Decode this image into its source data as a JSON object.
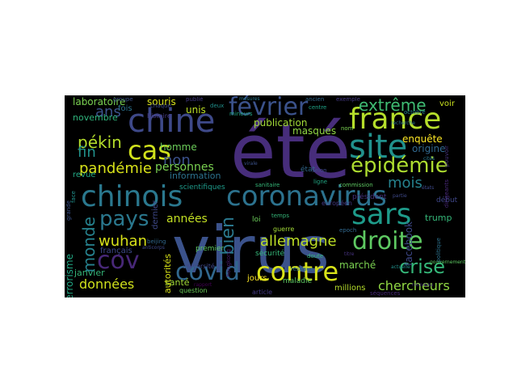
{
  "image": {
    "background": "#ffffff",
    "cloud_background": "#000000",
    "colormap": "viridis"
  },
  "words": [
    {
      "text": "été",
      "color": "#472d7b"
    },
    {
      "text": "virus",
      "color": "#3b528b"
    },
    {
      "text": "chinois",
      "color": "#2a788e"
    },
    {
      "text": "coronavirus",
      "color": "#2c728e"
    },
    {
      "text": "chine",
      "color": "#3e4989"
    },
    {
      "text": "france",
      "color": "#b5de2b"
    },
    {
      "text": "contre",
      "color": "#d8e219"
    },
    {
      "text": "site",
      "color": "#21918c"
    },
    {
      "text": "cas",
      "color": "#d0e11c"
    },
    {
      "text": "sars",
      "color": "#1e9b8a"
    },
    {
      "text": "cov",
      "color": "#482878"
    },
    {
      "text": "covid",
      "color": "#31688e"
    },
    {
      "text": "février",
      "color": "#3b528b"
    },
    {
      "text": "droite",
      "color": "#5ec962"
    },
    {
      "text": "épidémie",
      "color": "#addc30"
    },
    {
      "text": "pays",
      "color": "#2a788e"
    },
    {
      "text": "crise",
      "color": "#35b779"
    },
    {
      "text": "extrême",
      "color": "#3fbc73"
    },
    {
      "text": "allemagne",
      "color": "#bddf26"
    },
    {
      "text": "monde",
      "color": "#26828e"
    },
    {
      "text": "pékin",
      "color": "#b5de2b"
    },
    {
      "text": "bien",
      "color": "#2a788e"
    },
    {
      "text": "pandémie",
      "color": "#d8e219"
    },
    {
      "text": "wuhan",
      "color": "#d8e219"
    },
    {
      "text": "chercheurs",
      "color": "#90d743"
    },
    {
      "text": "données",
      "color": "#d0e11c"
    },
    {
      "text": "mois",
      "color": "#26828e"
    },
    {
      "text": "non",
      "color": "#3b528b"
    },
    {
      "text": "ans",
      "color": "#3b528b"
    },
    {
      "text": "fin",
      "color": "#21918c"
    },
    {
      "text": "personnes",
      "color": "#7ad151"
    },
    {
      "text": "homme",
      "color": "#6ccd5a"
    },
    {
      "text": "masques",
      "color": "#90d743"
    },
    {
      "text": "publication",
      "color": "#a2da37"
    },
    {
      "text": "enquête",
      "color": "#fde725"
    },
    {
      "text": "laboratoire",
      "color": "#7ad151"
    },
    {
      "text": "années",
      "color": "#c2df23"
    },
    {
      "text": "information",
      "color": "#2c728e"
    },
    {
      "text": "facebook",
      "color": "#3e4989"
    },
    {
      "text": "trump",
      "color": "#35b779"
    },
    {
      "text": "santé",
      "color": "#a2da37"
    },
    {
      "text": "jours",
      "color": "#fde725"
    },
    {
      "text": "souris",
      "color": "#d8e219"
    },
    {
      "text": "voir",
      "color": "#cae11f"
    },
    {
      "text": "unis",
      "color": "#bddf26"
    },
    {
      "text": "fois",
      "color": "#2c728e"
    },
    {
      "text": "origine",
      "color": "#31688e"
    },
    {
      "text": "novembre",
      "color": "#2fb47c"
    },
    {
      "text": "revue",
      "color": "#22a884"
    },
    {
      "text": "janvier",
      "color": "#35b779"
    },
    {
      "text": "marché",
      "color": "#7ad151"
    },
    {
      "text": "millions",
      "color": "#b5de2b"
    },
    {
      "text": "terrorisme",
      "color": "#22a884"
    },
    {
      "text": "autorités",
      "color": "#d8e219"
    },
    {
      "text": "dernier",
      "color": "#3e4989"
    },
    {
      "text": "français",
      "color": "#3e4989"
    },
    {
      "text": "scientifiques",
      "color": "#1e9b8a"
    },
    {
      "text": "loi",
      "color": "#6ccd5a"
    },
    {
      "text": "état",
      "color": "#31688e"
    },
    {
      "text": "premier",
      "color": "#5ec962"
    },
    {
      "text": "président",
      "color": "#46327e"
    },
    {
      "text": "début",
      "color": "#3f4788"
    },
    {
      "text": "européen",
      "color": "#443983"
    },
    {
      "text": "sécurité",
      "color": "#35b779"
    },
    {
      "text": "guerre",
      "color": "#a2da37"
    },
    {
      "text": "maladie",
      "color": "#5ec962"
    },
    {
      "text": "question",
      "color": "#6ccd5a"
    },
    {
      "text": "article",
      "color": "#443983"
    },
    {
      "text": "séquences",
      "color": "#482878"
    },
    {
      "text": "université",
      "color": "#3f4788"
    },
    {
      "text": "histoire",
      "color": "#443983"
    },
    {
      "text": "publié",
      "color": "#443983"
    },
    {
      "text": "réseaux",
      "color": "#2c728e"
    },
    {
      "text": "epoch",
      "color": "#31688e"
    },
    {
      "text": "commission",
      "color": "#5ec962"
    },
    {
      "text": "ligne",
      "color": "#22a884"
    },
    {
      "text": "sanitaire",
      "color": "#35b779"
    },
    {
      "text": "exemple",
      "color": "#443983"
    },
    {
      "text": "dirigeants",
      "color": "#482878"
    },
    {
      "text": "temps",
      "color": "#35b779"
    },
    {
      "text": "beijing",
      "color": "#31688e"
    },
    {
      "text": "chaque",
      "color": "#3e4989"
    },
    {
      "text": "nom",
      "color": "#7ad151"
    },
    {
      "text": "partie",
      "color": "#3e4989"
    },
    {
      "text": "grande",
      "color": "#3b528b"
    },
    {
      "text": "selon",
      "color": "#3e4989"
    },
    {
      "text": "deux",
      "color": "#21918c"
    },
    {
      "text": "politique",
      "color": "#2c728e"
    },
    {
      "text": "hongkong",
      "color": "#481a6c"
    },
    {
      "text": "centre",
      "color": "#20a386"
    },
    {
      "text": "ancien",
      "color": "#31688e"
    },
    {
      "text": "doute",
      "color": "#35b779"
    },
    {
      "text": "titre",
      "color": "#46327e"
    },
    {
      "text": "rapport",
      "color": "#440154"
    },
    {
      "text": "groupe",
      "color": "#3b528b"
    },
    {
      "text": "octobre",
      "color": "#26828e"
    },
    {
      "text": "face",
      "color": "#21918c"
    },
    {
      "text": "gouvernement",
      "color": "#5ec962"
    },
    {
      "text": "pouvoir",
      "color": "#46327e"
    },
    {
      "text": "actuelle",
      "color": "#21918c"
    },
    {
      "text": "recherche",
      "color": "#2c728e"
    },
    {
      "text": "virale",
      "color": "#3b528b"
    },
    {
      "text": "nouveau",
      "color": "#472d7b"
    },
    {
      "text": "cités",
      "color": "#2a788e"
    },
    {
      "text": "états",
      "color": "#3e4989"
    },
    {
      "text": "mineurs",
      "color": "#22a884"
    },
    {
      "text": "mesures",
      "color": "#2a788e"
    },
    {
      "text": "anticorps",
      "color": "#3e4989"
    }
  ]
}
